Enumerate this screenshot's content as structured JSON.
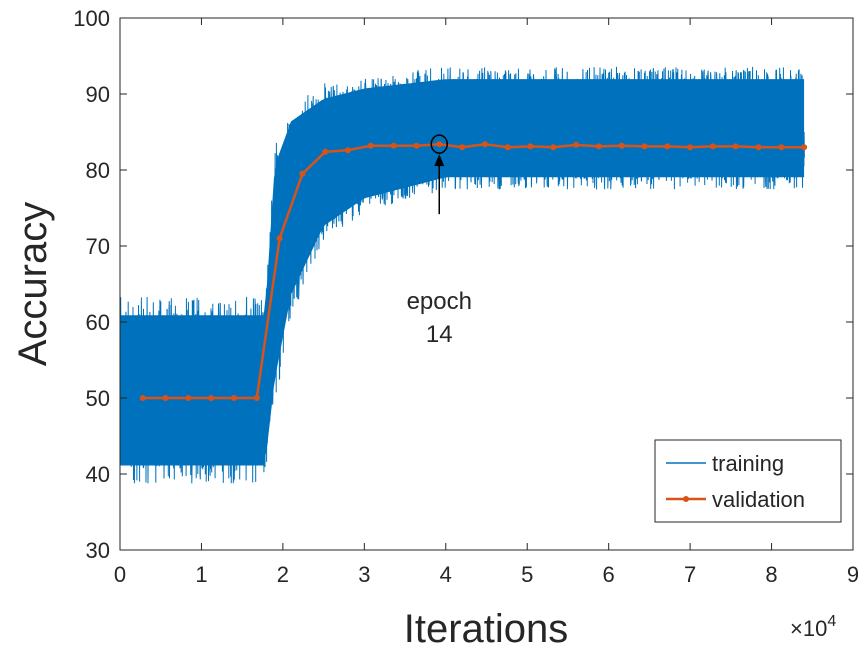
{
  "chart_data": {
    "type": "line",
    "title": "",
    "xlabel": "Iterations",
    "ylabel": "Accuracy",
    "x_exponent_label": "×10",
    "x_exponent_power": "4",
    "xlim": [
      0,
      9
    ],
    "ylim": [
      30,
      100
    ],
    "xticks": [
      "0",
      "1",
      "2",
      "3",
      "4",
      "5",
      "6",
      "7",
      "8",
      "9"
    ],
    "yticks": [
      "30",
      "40",
      "50",
      "60",
      "70",
      "80",
      "90",
      "100"
    ],
    "grid": false,
    "legend_position": "bottom-right",
    "series": [
      {
        "name": "training",
        "color": "#0072BD",
        "style": "noisy-band",
        "band": [
          {
            "x": 0.0,
            "low": 38,
            "high": 64
          },
          {
            "x": 1.78,
            "low": 38,
            "high": 64
          },
          {
            "x": 1.9,
            "low": 48,
            "high": 85
          },
          {
            "x": 2.1,
            "low": 60,
            "high": 90
          },
          {
            "x": 2.5,
            "low": 70,
            "high": 92
          },
          {
            "x": 3.0,
            "low": 74,
            "high": 93
          },
          {
            "x": 4.0,
            "low": 77,
            "high": 94
          },
          {
            "x": 6.0,
            "low": 77,
            "high": 94
          },
          {
            "x": 8.4,
            "low": 77,
            "high": 94
          }
        ]
      },
      {
        "name": "validation",
        "color": "#D95319",
        "x": [
          0.28,
          0.56,
          0.84,
          1.12,
          1.4,
          1.68,
          1.96,
          2.24,
          2.52,
          2.8,
          3.08,
          3.36,
          3.64,
          3.92,
          4.2,
          4.48,
          4.76,
          5.04,
          5.32,
          5.6,
          5.88,
          6.16,
          6.44,
          6.72,
          7.0,
          7.28,
          7.56,
          7.84,
          8.12,
          8.4
        ],
        "y": [
          50,
          50,
          50,
          50,
          50,
          50,
          71,
          79.5,
          82.4,
          82.6,
          83.2,
          83.2,
          83.2,
          83.4,
          83.0,
          83.4,
          83.0,
          83.1,
          83.0,
          83.3,
          83.1,
          83.2,
          83.1,
          83.1,
          83.0,
          83.1,
          83.1,
          83.0,
          83.0,
          83.0
        ]
      }
    ],
    "annotation": {
      "line1": "epoch",
      "line2": "14",
      "target_x": 3.92,
      "target_y": 83.4
    }
  }
}
